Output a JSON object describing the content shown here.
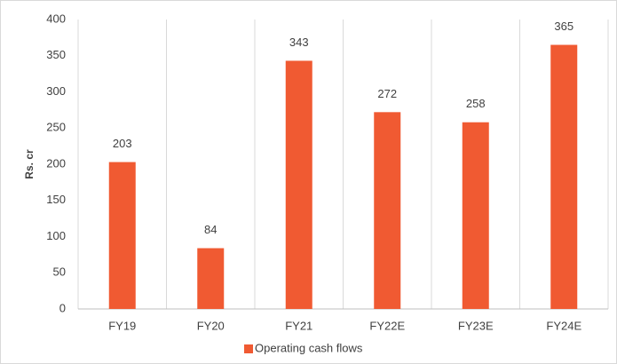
{
  "chart_data": {
    "type": "bar",
    "y_label": "Rs. cr",
    "categories": [
      "FY19",
      "FY20",
      "FY21",
      "FY22E",
      "FY23E",
      "FY24E"
    ],
    "series": [
      {
        "name": "Operating cash flows",
        "color": "#f05a32",
        "values": [
          203,
          84,
          343,
          272,
          258,
          365
        ]
      }
    ],
    "ylim": [
      0,
      400
    ],
    "yticks": [
      0,
      50,
      100,
      150,
      200,
      250,
      300,
      350,
      400
    ],
    "grid": "x",
    "legend": "bottom",
    "data_labels": true
  }
}
